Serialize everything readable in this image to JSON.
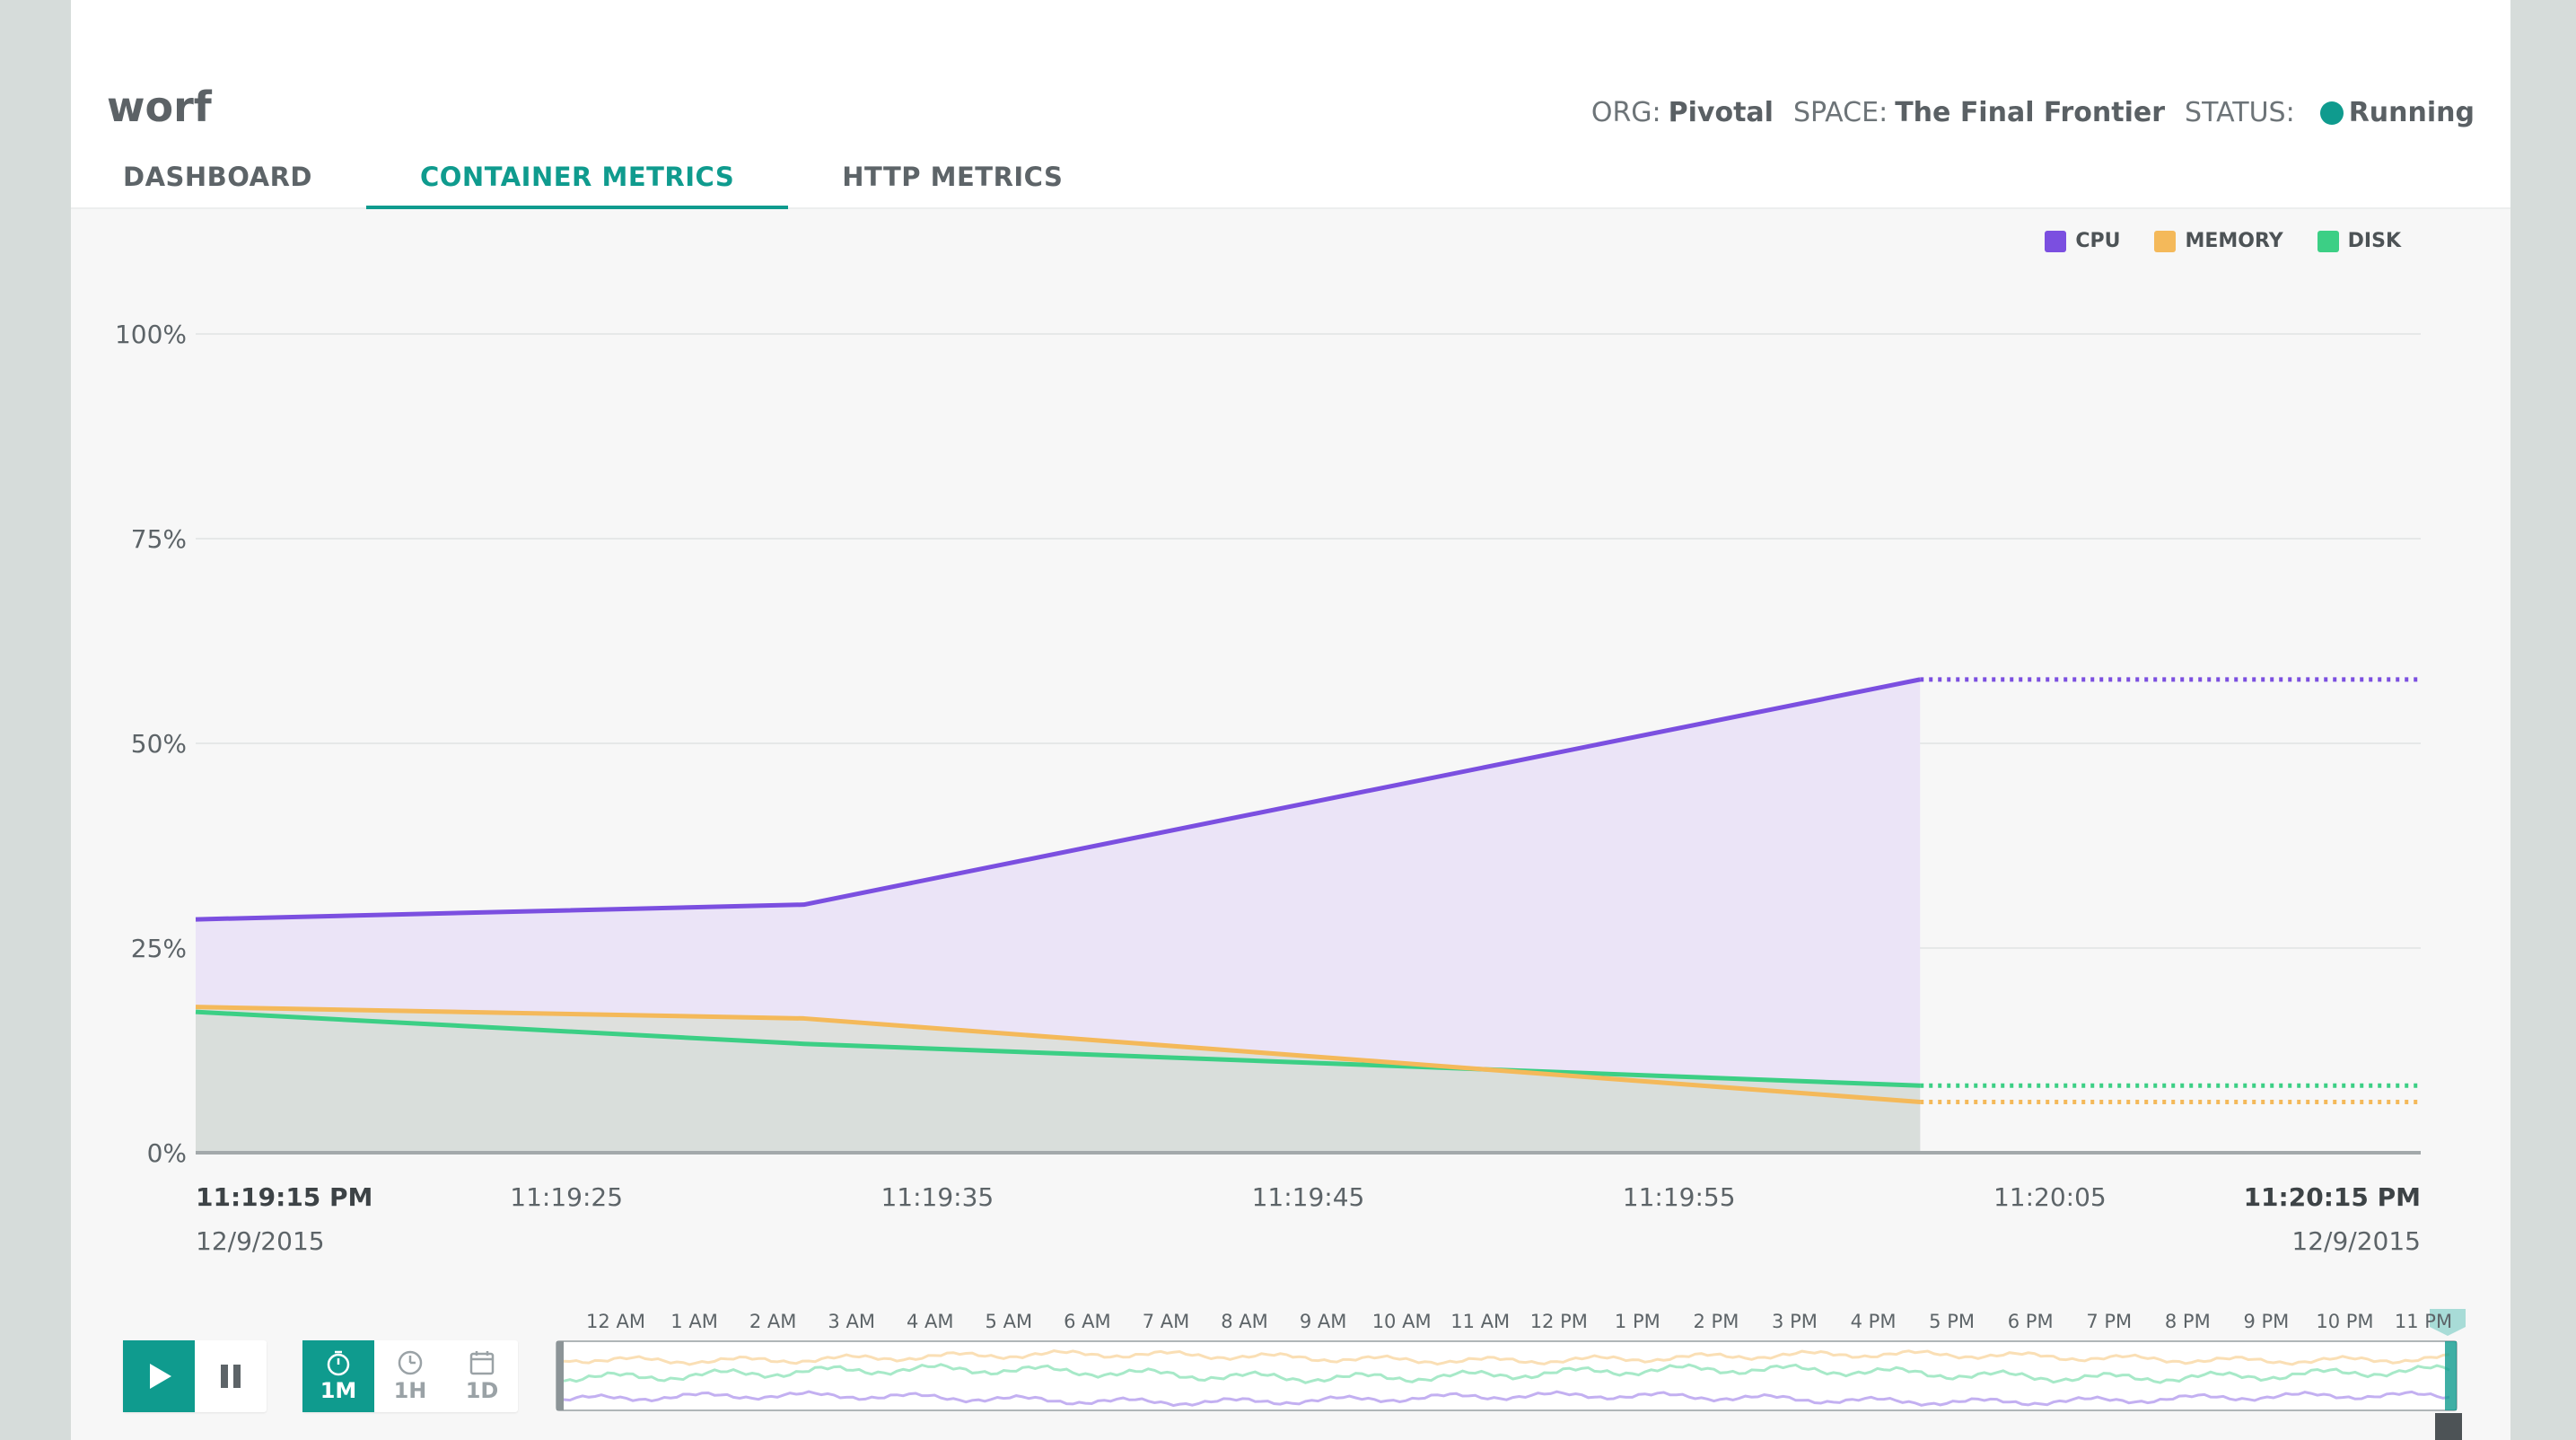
{
  "app": {
    "title": "worf",
    "org_label": "ORG:",
    "org": "Pivotal",
    "space_label": "SPACE:",
    "space": "The Final Frontier",
    "status_label": "STATUS:",
    "status": "Running",
    "status_color": "#0f9b8e"
  },
  "tabs": [
    {
      "label": "DASHBOARD",
      "active": false
    },
    {
      "label": "CONTAINER METRICS",
      "active": true
    },
    {
      "label": "HTTP METRICS",
      "active": false
    }
  ],
  "legend": [
    {
      "label": "CPU",
      "color": "#7b4fe0"
    },
    {
      "label": "MEMORY",
      "color": "#f4b95a"
    },
    {
      "label": "DISK",
      "color": "#3ccf85"
    }
  ],
  "chart_data": {
    "type": "area",
    "y_ticks": [
      "100%",
      "75%",
      "50%",
      "25%",
      "0%"
    ],
    "ylim": [
      0,
      100
    ],
    "x_tick_labels": [
      "11:19:15 PM",
      "11:19:25",
      "11:19:35",
      "11:19:45",
      "11:19:55",
      "11:20:05",
      "11:20:15 PM"
    ],
    "x_start_date": "12/9/2015",
    "x_end_date": "12/9/2015",
    "xlim": [
      0,
      60
    ],
    "series": [
      {
        "name": "CPU",
        "color": "#7b4fe0",
        "x": [
          0,
          16.4,
          46.5
        ],
        "values": [
          28.5,
          30.3,
          57.8
        ],
        "projected": 57.8
      },
      {
        "name": "MEMORY",
        "color": "#f4b95a",
        "x": [
          0,
          16.4,
          46.5
        ],
        "values": [
          17.8,
          16.4,
          6.2
        ],
        "projected": 6.2
      },
      {
        "name": "DISK",
        "color": "#3ccf85",
        "x": [
          0,
          16.4,
          46.5
        ],
        "values": [
          17.2,
          13.3,
          8.2
        ],
        "projected": 8.2
      }
    ]
  },
  "timeline": {
    "hours": [
      "12 AM",
      "1 AM",
      "2 AM",
      "3 AM",
      "4 AM",
      "5 AM",
      "6 AM",
      "7 AM",
      "8 AM",
      "9 AM",
      "10 AM",
      "11 AM",
      "12 PM",
      "1 PM",
      "2 PM",
      "3 PM",
      "4 PM",
      "5 PM",
      "6 PM",
      "7 PM",
      "8 PM",
      "9 PM",
      "10 PM",
      "11 PM"
    ]
  },
  "controls": {
    "play_icon": "play-icon",
    "pause_icon": "pause-icon",
    "ranges": [
      {
        "label": "1M",
        "icon": "stopwatch-icon",
        "active": true
      },
      {
        "label": "1H",
        "icon": "clock-icon",
        "active": false
      },
      {
        "label": "1D",
        "icon": "calendar-icon",
        "active": false
      }
    ]
  }
}
